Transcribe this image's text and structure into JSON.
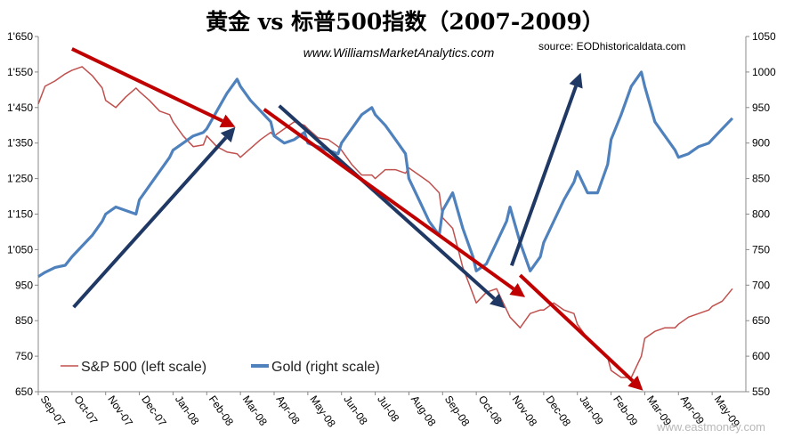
{
  "chart_data": {
    "type": "line",
    "title": "黄金 vs 标普500指数（2007-2009）",
    "subtitle": "www.WilliamsMarketAnalytics.com",
    "source": "source: EODhistoricaldata.com",
    "watermark": "www.eastmoney.com",
    "categories": [
      "Sep-07",
      "Oct-07",
      "Nov-07",
      "Dec-07",
      "Jan-08",
      "Feb-08",
      "Mar-08",
      "Apr-08",
      "May-08",
      "Jun-08",
      "Jul-08",
      "Aug-08",
      "Sep-08",
      "Oct-08",
      "Nov-08",
      "Dec-08",
      "Jan-09",
      "Feb-09",
      "Mar-09",
      "Apr-09",
      "May-09"
    ],
    "y_left": {
      "ticks": [
        "1'650",
        "1'550",
        "1'450",
        "1'350",
        "1'250",
        "1'150",
        "1'050",
        "950",
        "850",
        "750",
        "650"
      ],
      "ylim": [
        650,
        1650
      ]
    },
    "y_right": {
      "ticks": [
        "1050",
        "1000",
        "950",
        "900",
        "850",
        "800",
        "750",
        "700",
        "650",
        "600",
        "550"
      ],
      "ylim": [
        550,
        1050
      ]
    },
    "series": [
      {
        "name": "S&P 500 (left scale)",
        "axis": "left",
        "color": "#c0504d",
        "x": [
          0,
          0.2,
          0.5,
          0.8,
          1,
          1.3,
          1.6,
          1.9,
          2,
          2.3,
          2.6,
          2.9,
          3,
          3.3,
          3.6,
          3.9,
          4,
          4.3,
          4.6,
          4.9,
          5,
          5.3,
          5.6,
          5.9,
          6,
          6.3,
          6.6,
          6.9,
          7,
          7.3,
          7.6,
          7.9,
          8,
          8.3,
          8.6,
          8.9,
          9,
          9.3,
          9.6,
          9.9,
          10,
          10.3,
          10.6,
          10.9,
          11,
          11.3,
          11.6,
          11.9,
          12,
          12.3,
          12.6,
          12.9,
          13,
          13.3,
          13.6,
          13.9,
          14,
          14.3,
          14.6,
          14.9,
          15,
          15.3,
          15.6,
          15.9,
          16,
          16.3,
          16.6,
          16.9,
          17,
          17.3,
          17.6,
          17.9,
          18,
          18.3,
          18.6,
          18.9,
          19,
          19.3,
          19.6,
          19.9,
          20,
          20.3,
          20.6
        ],
        "values": [
          1460,
          1510,
          1525,
          1545,
          1555,
          1565,
          1540,
          1505,
          1470,
          1450,
          1480,
          1505,
          1495,
          1470,
          1440,
          1430,
          1410,
          1370,
          1340,
          1345,
          1370,
          1340,
          1325,
          1320,
          1310,
          1335,
          1360,
          1380,
          1370,
          1390,
          1410,
          1400,
          1390,
          1365,
          1360,
          1340,
          1330,
          1290,
          1260,
          1260,
          1250,
          1275,
          1275,
          1265,
          1280,
          1260,
          1240,
          1210,
          1140,
          1110,
          1000,
          925,
          900,
          930,
          940,
          880,
          860,
          830,
          870,
          880,
          880,
          900,
          880,
          870,
          840,
          800,
          770,
          745,
          710,
          690,
          690,
          750,
          800,
          820,
          830,
          830,
          840,
          860,
          870,
          880,
          890,
          905,
          940
        ]
      },
      {
        "name": "Gold (right scale)",
        "axis": "right",
        "color": "#4f81bd",
        "x": [
          0,
          0.2,
          0.5,
          0.8,
          1,
          1.3,
          1.6,
          1.9,
          2,
          2.3,
          2.6,
          2.9,
          3,
          3.3,
          3.6,
          3.9,
          4,
          4.3,
          4.6,
          4.9,
          5,
          5.3,
          5.6,
          5.9,
          6,
          6.3,
          6.6,
          6.9,
          7,
          7.3,
          7.6,
          7.9,
          8,
          8.3,
          8.6,
          8.9,
          9,
          9.3,
          9.6,
          9.9,
          10,
          10.3,
          10.6,
          10.9,
          11,
          11.3,
          11.6,
          11.9,
          12,
          12.3,
          12.6,
          12.9,
          13,
          13.3,
          13.6,
          13.9,
          14,
          14.3,
          14.6,
          14.9,
          15,
          15.3,
          15.6,
          15.9,
          16,
          16.3,
          16.6,
          16.9,
          17,
          17.3,
          17.6,
          17.9,
          18,
          18.3,
          18.6,
          18.9,
          19,
          19.3,
          19.6,
          19.9,
          20,
          20.3,
          20.6
        ],
        "values": [
          712,
          718,
          725,
          728,
          740,
          755,
          770,
          790,
          800,
          810,
          805,
          800,
          820,
          840,
          860,
          880,
          890,
          900,
          910,
          915,
          920,
          945,
          970,
          990,
          980,
          960,
          945,
          930,
          910,
          900,
          905,
          915,
          900,
          895,
          890,
          885,
          900,
          920,
          940,
          950,
          940,
          925,
          905,
          885,
          850,
          820,
          790,
          770,
          805,
          830,
          780,
          740,
          720,
          730,
          760,
          790,
          810,
          760,
          720,
          740,
          760,
          790,
          820,
          845,
          860,
          830,
          830,
          870,
          905,
          940,
          980,
          1000,
          980,
          930,
          910,
          890,
          880,
          885,
          895,
          900,
          905,
          920,
          935
        ]
      }
    ],
    "arrows": [
      {
        "color": "dark-red"
      },
      {
        "color": "navy"
      },
      {
        "color": "navy"
      },
      {
        "color": "dark-red"
      },
      {
        "color": "navy"
      },
      {
        "color": "dark-red"
      },
      {
        "color": "navy"
      }
    ],
    "legend_position": "bottom-left",
    "grid": false
  }
}
